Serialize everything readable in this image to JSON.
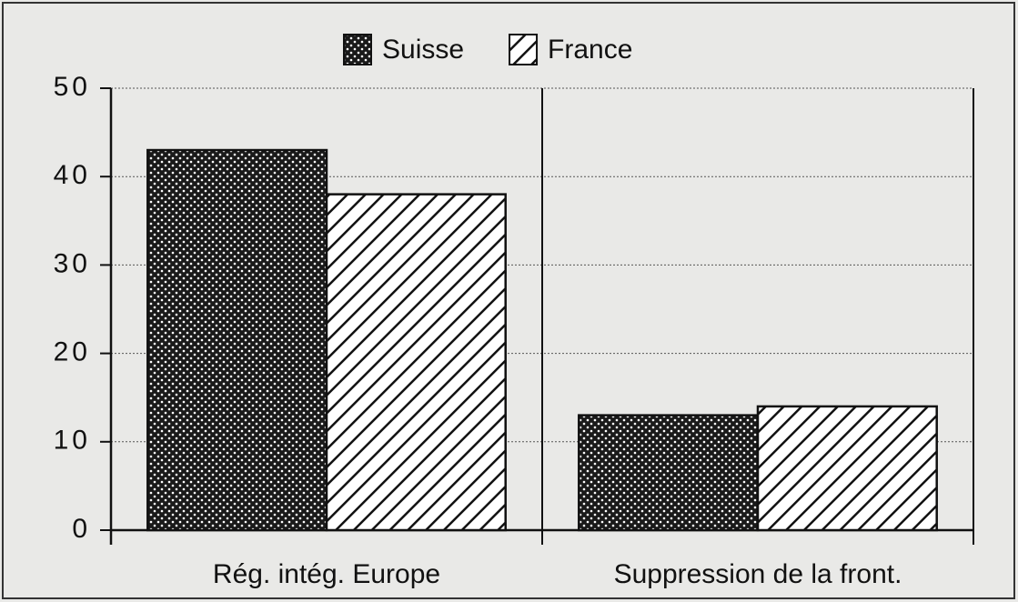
{
  "chart_data": {
    "type": "bar",
    "categories": [
      "Rég. intég. Europe",
      "Suppression de la front."
    ],
    "series": [
      {
        "name": "Suisse",
        "color": "#1a1a1a",
        "pattern": "dots",
        "values": [
          43,
          13
        ]
      },
      {
        "name": "France",
        "color": "#ffffff",
        "pattern": "hatch",
        "values": [
          38,
          14
        ]
      }
    ],
    "ylim": [
      0,
      50
    ],
    "yticks": [
      0,
      10,
      20,
      30,
      40,
      50
    ],
    "grid": true,
    "legend": "top"
  }
}
